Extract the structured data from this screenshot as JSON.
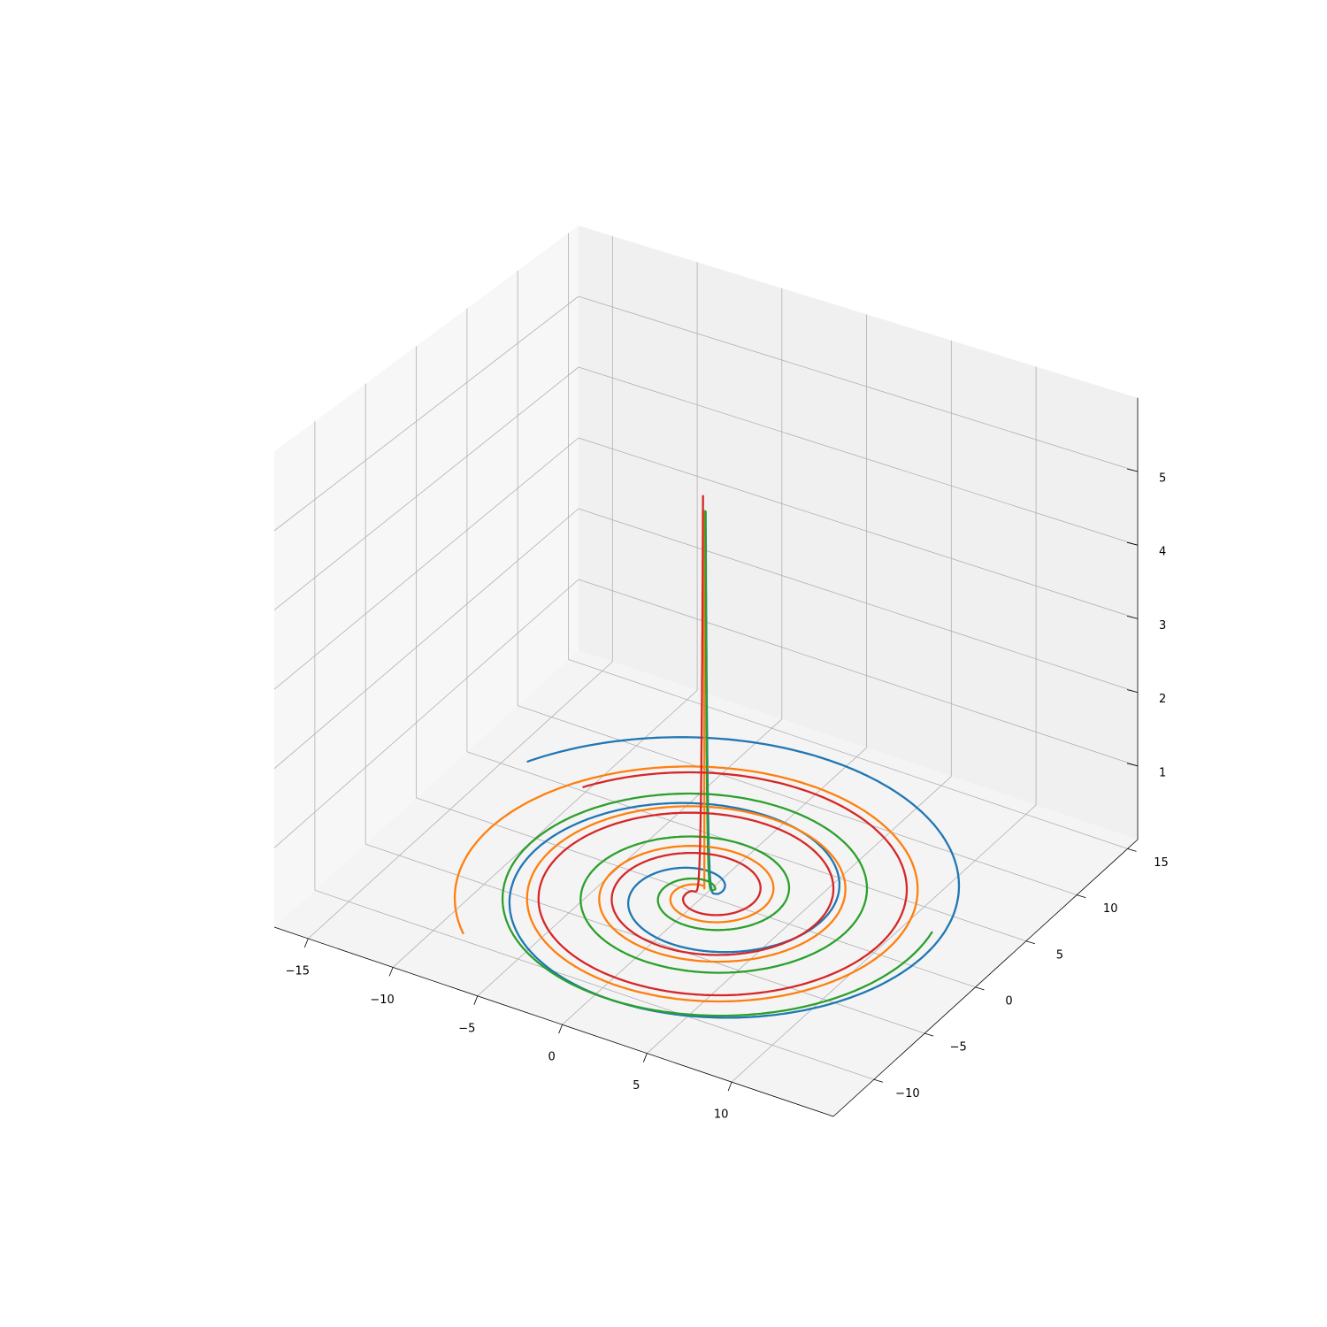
{
  "chart_data": {
    "type": "line3d",
    "title": "",
    "xlabel": "",
    "ylabel": "",
    "zlabel": "",
    "xlim": [
      -17,
      16
    ],
    "ylim": [
      -14,
      16
    ],
    "zlim": [
      0,
      6
    ],
    "x_ticks": [
      -15,
      -10,
      -5,
      0,
      5,
      10
    ],
    "x_tick_labels": [
      "−15",
      "−10",
      "−5",
      "0",
      "5",
      "10"
    ],
    "y_ticks": [
      -10,
      -5,
      0,
      5,
      10,
      15
    ],
    "y_tick_labels": [
      "−10",
      "−5",
      "0",
      "5",
      "10",
      "15"
    ],
    "z_ticks": [
      1,
      2,
      3,
      4,
      5
    ],
    "z_tick_labels": [
      "1",
      "2",
      "3",
      "4",
      "5"
    ],
    "grid": true,
    "legend": "none",
    "colors": {
      "pane_left": "#f7f7f7",
      "pane_back": "#f0f0f0",
      "pane_floor": "#f4f4f4",
      "grid": "#b0b0b0"
    },
    "series": [
      {
        "color": "#1f77b4",
        "phase": 0.55,
        "turns": 2.35,
        "r_end": 15.0,
        "z_top": 5.0
      },
      {
        "color": "#ff7f0e",
        "phase": 2.1,
        "turns": 3.3,
        "r_end": 12.8,
        "z_top": 5.0
      },
      {
        "color": "#2ca02c",
        "phase": 1.2,
        "turns": 2.85,
        "r_end": 12.0,
        "z_top": 5.0
      },
      {
        "color": "#d62728",
        "phase": 3.3,
        "turns": 2.9,
        "r_end": 11.5,
        "z_top": 5.2
      }
    ]
  }
}
